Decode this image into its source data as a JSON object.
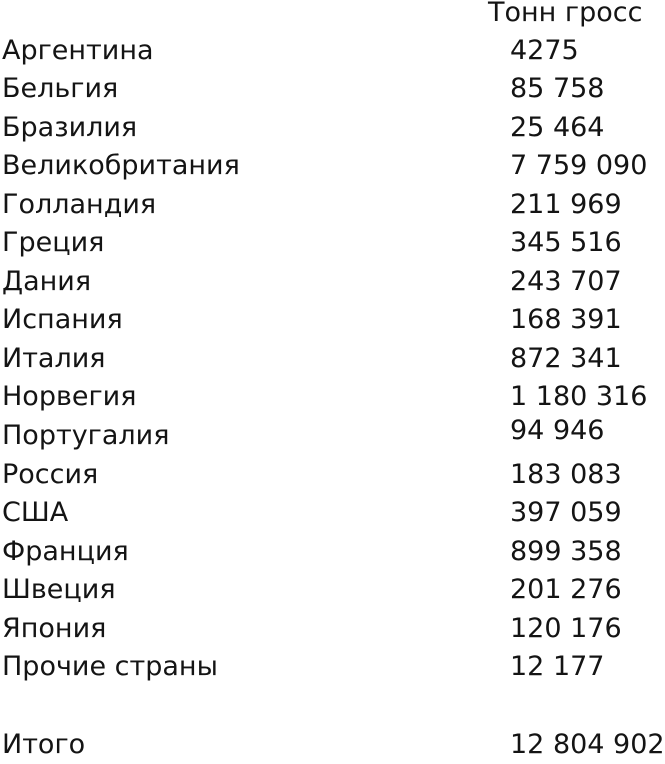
{
  "table": {
    "header": "Тонн гросс",
    "rows": [
      {
        "country": "Аргентина",
        "value": "4275"
      },
      {
        "country": "Бельгия",
        "value": "85 758"
      },
      {
        "country": "Бразилия",
        "value": "25 464"
      },
      {
        "country": "Великобритания",
        "value": "7 759 090"
      },
      {
        "country": "Голландия",
        "value": "211 969"
      },
      {
        "country": "Греция",
        "value": "345 516"
      },
      {
        "country": "Дания",
        "value": "243 707"
      },
      {
        "country": "Испания",
        "value": "168 391"
      },
      {
        "country": "Италия",
        "value": "872 341"
      },
      {
        "country": "Норвегия",
        "value": "1 180 316"
      },
      {
        "country": "Португалия",
        "value": "94 946"
      },
      {
        "country": "Россия",
        "value": "183 083"
      },
      {
        "country": "США",
        "value": "397 059"
      },
      {
        "country": "Франция",
        "value": "899 358"
      },
      {
        "country": "Швеция",
        "value": "201 276"
      },
      {
        "country": "Япония",
        "value": "120 176"
      },
      {
        "country": "Прочие страны",
        "value": "12 177"
      }
    ],
    "total": {
      "label": "Итого",
      "value": "12 804 902"
    }
  }
}
